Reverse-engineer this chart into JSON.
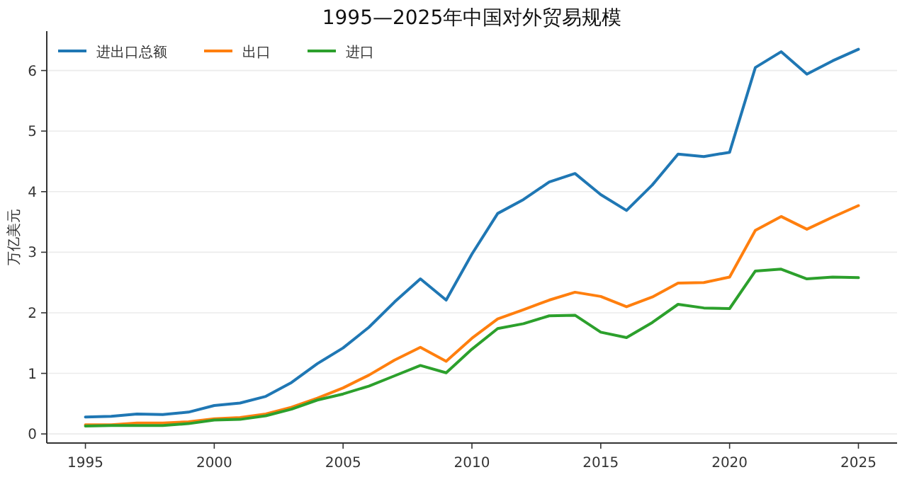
{
  "chart_data": {
    "type": "line",
    "title": "1995—2025年中国对外贸易规模",
    "ylabel": "万亿美元",
    "x": [
      1995,
      1996,
      1997,
      1998,
      1999,
      2000,
      2001,
      2002,
      2003,
      2004,
      2005,
      2006,
      2007,
      2008,
      2009,
      2010,
      2011,
      2012,
      2013,
      2014,
      2015,
      2016,
      2017,
      2018,
      2019,
      2020,
      2021,
      2022,
      2023,
      2024,
      2025
    ],
    "series": [
      {
        "name": "进出口总额",
        "color": "#1f77b4",
        "values": [
          0.28,
          0.29,
          0.33,
          0.32,
          0.36,
          0.47,
          0.51,
          0.62,
          0.85,
          1.16,
          1.42,
          1.76,
          2.18,
          2.56,
          2.21,
          2.97,
          3.64,
          3.87,
          4.16,
          4.3,
          3.95,
          3.69,
          4.11,
          4.62,
          4.58,
          4.65,
          6.05,
          6.31,
          5.94,
          6.16,
          6.35
        ]
      },
      {
        "name": "出口",
        "color": "#ff7f0e",
        "values": [
          0.15,
          0.15,
          0.18,
          0.18,
          0.2,
          0.25,
          0.27,
          0.33,
          0.44,
          0.59,
          0.76,
          0.97,
          1.22,
          1.43,
          1.2,
          1.58,
          1.9,
          2.05,
          2.21,
          2.34,
          2.27,
          2.1,
          2.26,
          2.49,
          2.5,
          2.59,
          3.36,
          3.59,
          3.38,
          3.58,
          3.77
        ]
      },
      {
        "name": "进口",
        "color": "#2ca02c",
        "values": [
          0.13,
          0.14,
          0.14,
          0.14,
          0.17,
          0.23,
          0.24,
          0.3,
          0.41,
          0.56,
          0.66,
          0.79,
          0.96,
          1.13,
          1.01,
          1.4,
          1.74,
          1.82,
          1.95,
          1.96,
          1.68,
          1.59,
          1.84,
          2.14,
          2.08,
          2.07,
          2.69,
          2.72,
          2.56,
          2.59,
          2.58
        ]
      }
    ],
    "xlim": [
      1993.5,
      2026.5
    ],
    "ylim": [
      -0.15,
      6.65
    ],
    "xticks": [
      1995,
      2000,
      2005,
      2010,
      2015,
      2020,
      2025
    ],
    "yticks": [
      0,
      1,
      2,
      3,
      4,
      5,
      6
    ],
    "grid": "y",
    "legend": "top left",
    "line_style": "solid",
    "marker": "none"
  }
}
